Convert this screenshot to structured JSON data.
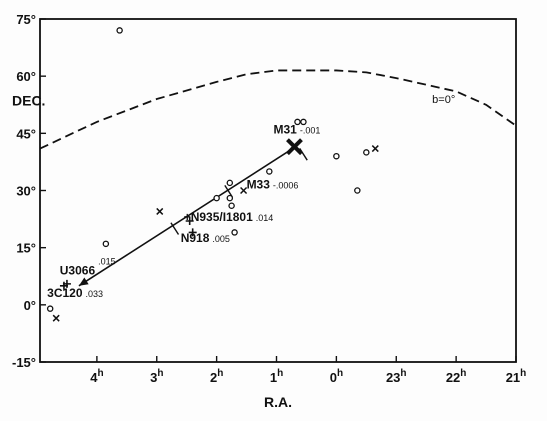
{
  "chart_data": {
    "type": "scatter",
    "xlabel": "R.A.",
    "ylabel": "DEC.",
    "xlim_hours": [
      4.95,
      21.0
    ],
    "ylim": [
      -15,
      75
    ],
    "x_direction": "reversed",
    "x_ticks": [
      {
        "value": 4,
        "label": "4",
        "sup": "h"
      },
      {
        "value": 3,
        "label": "3",
        "sup": "h"
      },
      {
        "value": 2,
        "label": "2",
        "sup": "h"
      },
      {
        "value": 1,
        "label": "1",
        "sup": "h"
      },
      {
        "value": 0,
        "label": "0",
        "sup": "h"
      },
      {
        "value": 23,
        "label": "23",
        "sup": "h"
      },
      {
        "value": 22,
        "label": "22",
        "sup": "h"
      },
      {
        "value": 21,
        "label": "21",
        "sup": "h"
      }
    ],
    "y_ticks": [
      {
        "value": 75,
        "label": "75°"
      },
      {
        "value": 60,
        "label": "60°"
      },
      {
        "value": 45,
        "label": "45°"
      },
      {
        "value": 30,
        "label": "30°"
      },
      {
        "value": 15,
        "label": "15°"
      },
      {
        "value": 0,
        "label": "0°"
      },
      {
        "value": -15,
        "label": "-15°"
      }
    ],
    "grid": false,
    "galactic_plane": {
      "label": "b=0°",
      "points": [
        [
          4.95,
          41
        ],
        [
          4.0,
          48
        ],
        [
          3.0,
          54
        ],
        [
          2.0,
          58.5
        ],
        [
          1.5,
          60.5
        ],
        [
          1.0,
          61.5
        ],
        [
          0.0,
          61.5
        ],
        [
          23.5,
          61
        ],
        [
          23.0,
          59.5
        ],
        [
          22.0,
          56
        ],
        [
          21.5,
          52.5
        ],
        [
          21.0,
          47
        ]
      ]
    },
    "arrow": {
      "from": [
        0.7,
        41.3
      ],
      "to": [
        4.3,
        5
      ]
    },
    "arrow_ticks": [
      [
        0.55,
        39.5
      ],
      [
        1.8,
        29.8
      ],
      [
        2.7,
        20
      ]
    ],
    "points": [
      {
        "marker": "dot",
        "ra": 3.62,
        "dec": 72
      },
      {
        "marker": "dot",
        "ra": 0.65,
        "dec": 48
      },
      {
        "marker": "dot",
        "ra": 0.55,
        "dec": 48
      },
      {
        "marker": "dot",
        "ra": 0.0,
        "dec": 39
      },
      {
        "marker": "dot",
        "ra": 23.5,
        "dec": 40
      },
      {
        "marker": "x",
        "ra": 23.35,
        "dec": 41
      },
      {
        "marker": "dot",
        "ra": 23.65,
        "dec": 30
      },
      {
        "marker": "dot",
        "ra": 1.12,
        "dec": 35
      },
      {
        "marker": "dot",
        "ra": 1.78,
        "dec": 32
      },
      {
        "marker": "dot",
        "ra": 1.78,
        "dec": 28
      },
      {
        "marker": "dot",
        "ra": 1.75,
        "dec": 26
      },
      {
        "marker": "dot",
        "ra": 2.0,
        "dec": 28
      },
      {
        "marker": "x",
        "ra": 1.55,
        "dec": 30
      },
      {
        "marker": "x",
        "ra": 2.95,
        "dec": 24.5
      },
      {
        "marker": "dot",
        "ra": 3.85,
        "dec": 16
      },
      {
        "marker": "dot",
        "ra": 1.7,
        "dec": 19
      },
      {
        "marker": "cross",
        "ra": 2.45,
        "dec": 22
      },
      {
        "marker": "cross",
        "ra": 2.4,
        "dec": 19
      },
      {
        "marker": "cross",
        "ra": 4.55,
        "dec": 5
      },
      {
        "marker": "cross",
        "ra": 4.5,
        "dec": 5.5
      },
      {
        "marker": "dot",
        "ra": 4.78,
        "dec": -1
      },
      {
        "marker": "x",
        "ra": 4.68,
        "dec": -3.5
      },
      {
        "marker": "bigx",
        "ra": 0.7,
        "dec": 41.5
      }
    ],
    "annotations": [
      {
        "name": "M31",
        "value": "-.001",
        "ra": 1.05,
        "dec": 45
      },
      {
        "name": "M33",
        "value": "-.0006",
        "ra": 1.5,
        "dec": 30.5
      },
      {
        "name": "+N935/I1801",
        "value": ".014",
        "ra": 2.55,
        "dec": 22
      },
      {
        "name": "N918",
        "value": ".005",
        "ra": 2.6,
        "dec": 16.5
      },
      {
        "name": "U3066",
        "value": ".015",
        "ra": 4.62,
        "dec": 8
      },
      {
        "name": "3C120",
        "value": ".033",
        "ra": 4.83,
        "dec": 2
      }
    ]
  }
}
